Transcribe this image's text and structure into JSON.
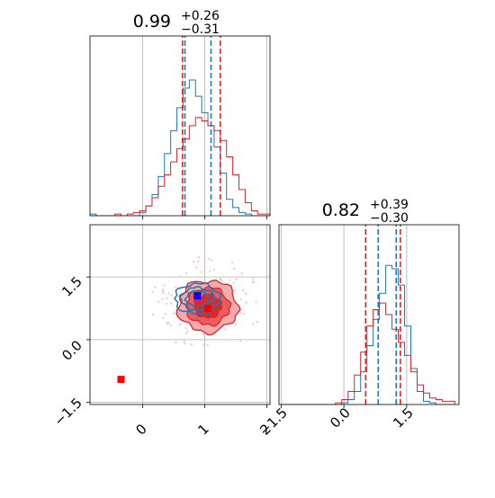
{
  "chart_data": [
    {
      "type": "histogram",
      "panel": "marginal-x",
      "title_main": "0.99",
      "title_plus": "+0.26",
      "title_minus": "−0.31",
      "xlim": [
        -0.85,
        2.05
      ],
      "ylim": [
        0,
        1
      ],
      "grid": true,
      "series": [
        {
          "color": "#1f77b4",
          "bins": [
            -0.85,
            -0.75,
            -0.65,
            -0.55,
            -0.45,
            -0.35,
            -0.25,
            -0.15,
            -0.05,
            0.05,
            0.15,
            0.25,
            0.35,
            0.45,
            0.55,
            0.65,
            0.75,
            0.85,
            0.95,
            1.05,
            1.15,
            1.25,
            1.35,
            1.45,
            1.55,
            1.65,
            1.75,
            1.85,
            1.95,
            2.05
          ],
          "values": [
            0.01,
            0.0,
            0.0,
            0.0,
            0.0,
            0.0,
            0.0,
            0.0,
            0.02,
            0.06,
            0.13,
            0.24,
            0.38,
            0.52,
            0.66,
            0.78,
            0.83,
            0.73,
            0.63,
            0.55,
            0.42,
            0.26,
            0.1,
            0.05,
            0.02,
            0.01,
            0.0,
            0.0,
            0.0
          ],
          "quantile_lines": [
            0.68,
            1.1
          ]
        },
        {
          "color": "#d62728",
          "bins": [
            -0.85,
            -0.75,
            -0.65,
            -0.55,
            -0.45,
            -0.35,
            -0.25,
            -0.15,
            -0.05,
            0.05,
            0.15,
            0.25,
            0.35,
            0.45,
            0.55,
            0.65,
            0.75,
            0.85,
            0.95,
            1.05,
            1.15,
            1.25,
            1.35,
            1.45,
            1.55,
            1.65,
            1.75,
            1.85,
            1.95,
            2.05
          ],
          "values": [
            0.0,
            0.0,
            0.0,
            0.0,
            0.01,
            0.0,
            0.01,
            0.02,
            0.03,
            0.06,
            0.11,
            0.18,
            0.25,
            0.33,
            0.41,
            0.47,
            0.55,
            0.6,
            0.58,
            0.55,
            0.52,
            0.46,
            0.36,
            0.25,
            0.16,
            0.08,
            0.03,
            0.01,
            0.01
          ],
          "quantile_lines": [
            0.64,
            1.25
          ]
        }
      ]
    },
    {
      "type": "contour",
      "panel": "joint",
      "xlim": [
        -0.85,
        2.05
      ],
      "ylim": [
        -1.55,
        2.75
      ],
      "xticks": [
        "0",
        "1",
        "2"
      ],
      "yticks": [
        "−1.5",
        "0.0",
        "1.5"
      ],
      "grid": true,
      "series": [
        {
          "color": "#d62728",
          "center": [
            1.05,
            0.8
          ],
          "spread": [
            0.48,
            0.62
          ],
          "levels": [
            1.0,
            0.72,
            0.45
          ],
          "peak_marker": [
            1.05,
            0.75
          ]
        },
        {
          "color": "#1f77b4",
          "center": [
            0.88,
            0.98
          ],
          "spread": [
            0.38,
            0.38
          ],
          "levels": [
            0.95,
            0.7,
            0.48
          ],
          "peak_marker": [
            0.88,
            1.05
          ]
        }
      ],
      "truth_marker": {
        "x": -0.35,
        "y": -0.95,
        "color": "#ff0000"
      }
    },
    {
      "type": "histogram",
      "panel": "marginal-y",
      "title_main": "0.82",
      "title_plus": "+0.39",
      "title_minus": "−0.30",
      "xlim": [
        -1.55,
        2.75
      ],
      "ylim": [
        0,
        1
      ],
      "xticks": [
        "−1.5",
        "0.0",
        "1.5"
      ],
      "grid": true,
      "series": [
        {
          "color": "#1f77b4",
          "bins": [
            -1.55,
            -1.4,
            -1.25,
            -1.1,
            -0.95,
            -0.8,
            -0.65,
            -0.5,
            -0.35,
            -0.2,
            -0.05,
            0.1,
            0.25,
            0.4,
            0.55,
            0.7,
            0.85,
            1.0,
            1.15,
            1.3,
            1.45,
            1.6,
            1.75,
            1.9,
            2.05,
            2.2,
            2.35,
            2.5,
            2.65
          ],
          "values": [
            0,
            0,
            0,
            0,
            0,
            0,
            0,
            0,
            0,
            0,
            0.01,
            0.03,
            0.08,
            0.2,
            0.36,
            0.52,
            0.68,
            0.85,
            0.83,
            0.73,
            0.48,
            0.22,
            0.08,
            0.02,
            0.01,
            0,
            0,
            0
          ],
          "quantile_lines": [
            0.82,
            1.25
          ]
        },
        {
          "color": "#d62728",
          "bins": [
            -1.55,
            -1.4,
            -1.25,
            -1.1,
            -0.95,
            -0.8,
            -0.65,
            -0.5,
            -0.35,
            -0.2,
            -0.05,
            0.1,
            0.25,
            0.4,
            0.55,
            0.7,
            0.85,
            1.0,
            1.15,
            1.3,
            1.45,
            1.6,
            1.75,
            1.9,
            2.05,
            2.2,
            2.35,
            2.5,
            2.65
          ],
          "values": [
            0,
            0,
            0,
            0,
            0,
            0,
            0,
            0,
            0,
            0.01,
            0.03,
            0.08,
            0.18,
            0.32,
            0.48,
            0.58,
            0.62,
            0.55,
            0.46,
            0.38,
            0.3,
            0.2,
            0.12,
            0.07,
            0.04,
            0.03,
            0.02,
            0.02
          ],
          "quantile_lines": [
            0.52,
            1.35
          ]
        }
      ]
    }
  ]
}
